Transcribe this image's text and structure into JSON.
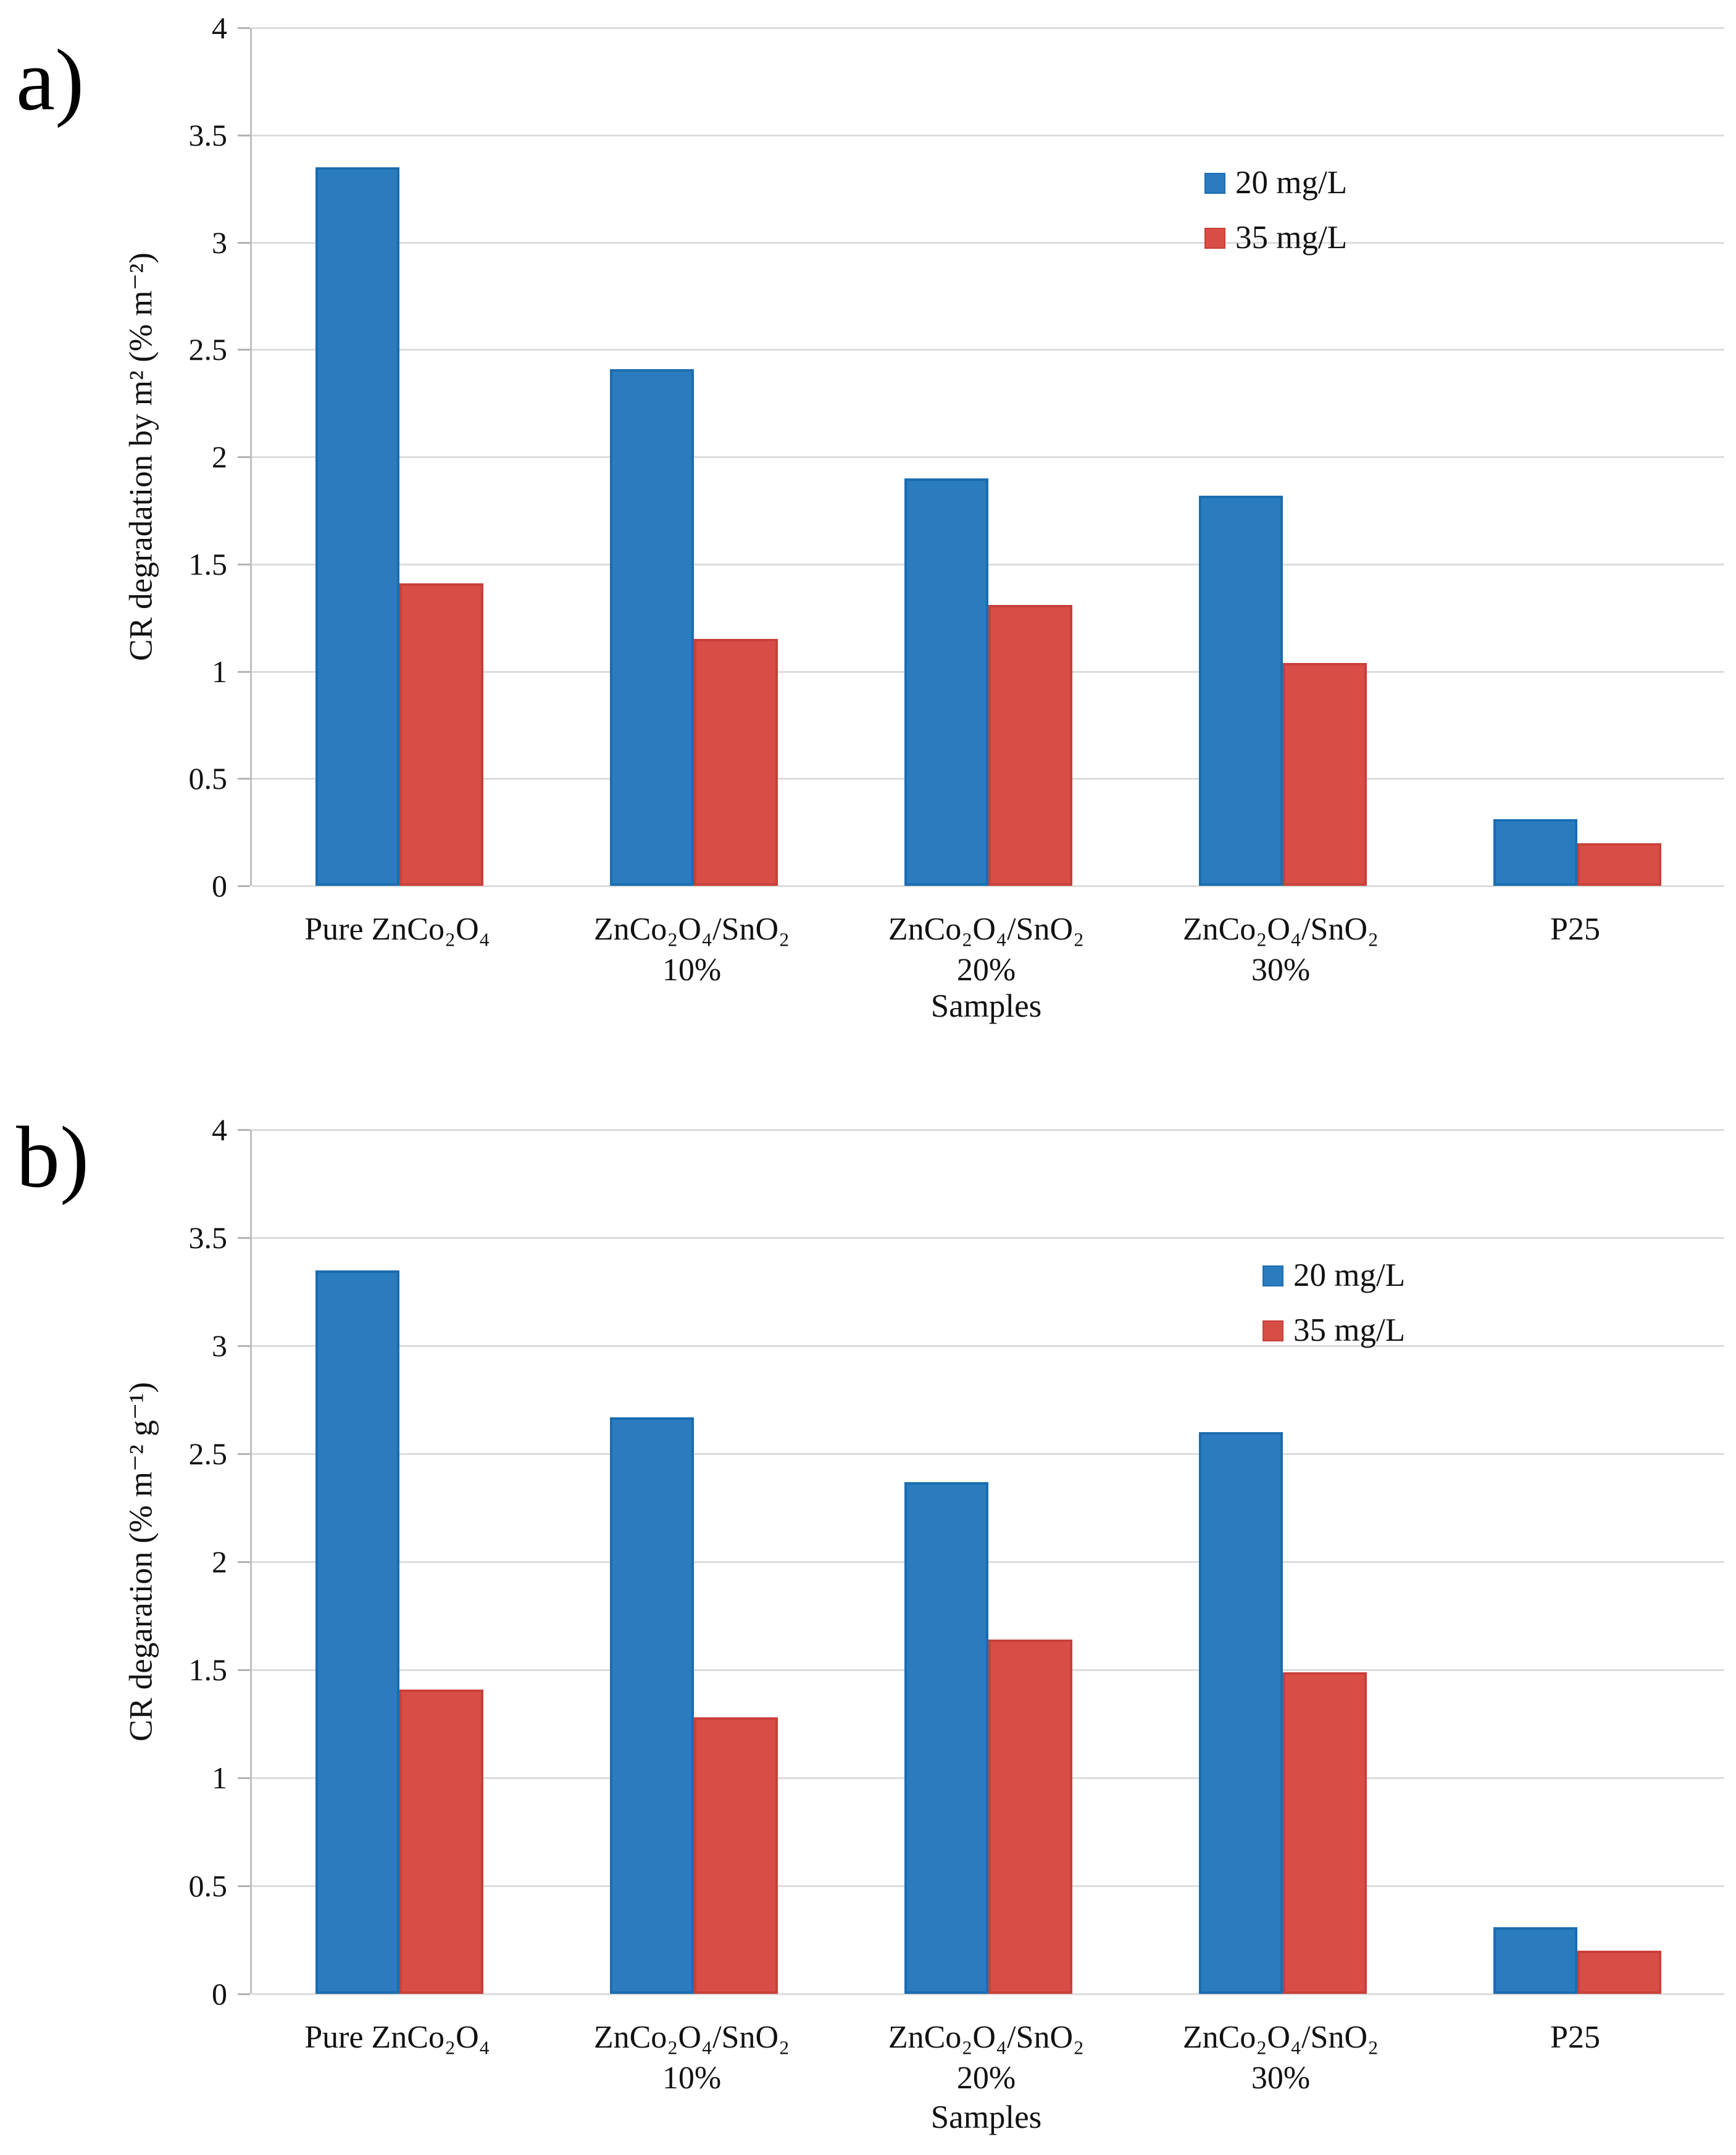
{
  "figure": {
    "background_color": "#ffffff",
    "grid_color": "#dcdcdc",
    "axis_line_color": "#bfbfbf",
    "tick_mark_color": "#b3b3b3",
    "text_color": "#111111"
  },
  "chart_data": [
    {
      "panel_label": "a)",
      "type": "bar",
      "title": "",
      "ylabel": "CR degradation by m² (% m⁻²)",
      "xlabel": "Samples",
      "ylim": [
        0,
        4
      ],
      "ytick_step": 0.5,
      "yticks": [
        "4",
        "3.5",
        "3",
        "2.5",
        "2",
        "1.5",
        "1",
        "0.5",
        "0"
      ],
      "grid": true,
      "legend_position": "inside upper right",
      "categories": [
        [
          "Pure ZnCo₂O₄"
        ],
        [
          "ZnCo₂O₄/SnO₂",
          "10%"
        ],
        [
          "ZnCo₂O₄/SnO₂",
          "20%"
        ],
        [
          "ZnCo₂O₄/SnO₂",
          "30%"
        ],
        [
          "P25"
        ]
      ],
      "series": [
        {
          "name": "20 mg/L",
          "color": "#2a7cbe",
          "border_color": "#1b6db1",
          "values": [
            3.35,
            2.41,
            1.9,
            1.82,
            0.31
          ]
        },
        {
          "name": "35 mg/L",
          "color": "#d94d47",
          "border_color": "#c9403a",
          "values": [
            1.41,
            1.15,
            1.31,
            1.04,
            0.2
          ]
        }
      ]
    },
    {
      "panel_label": "b)",
      "type": "bar",
      "title": "",
      "ylabel": "CR degaration (% m⁻² g⁻¹)",
      "xlabel": "Samples",
      "ylim": [
        0,
        4
      ],
      "ytick_step": 0.5,
      "yticks": [
        "4",
        "3.5",
        "3",
        "2.5",
        "2",
        "1.5",
        "1",
        "0.5",
        "0"
      ],
      "grid": true,
      "legend_position": "inside upper right",
      "categories": [
        [
          "Pure ZnCo₂O₄"
        ],
        [
          "ZnCo₂O₄/SnO₂",
          "10%"
        ],
        [
          "ZnCo₂O₄/SnO₂",
          "20%"
        ],
        [
          "ZnCo₂O₄/SnO₂",
          "30%"
        ],
        [
          "P25"
        ]
      ],
      "series": [
        {
          "name": "20 mg/L",
          "color": "#2a7cbe",
          "border_color": "#1b6db1",
          "values": [
            3.35,
            2.67,
            2.37,
            2.6,
            0.31
          ]
        },
        {
          "name": "35 mg/L",
          "color": "#d94d47",
          "border_color": "#c9403a",
          "values": [
            1.41,
            1.28,
            1.64,
            1.49,
            0.2
          ]
        }
      ]
    }
  ]
}
